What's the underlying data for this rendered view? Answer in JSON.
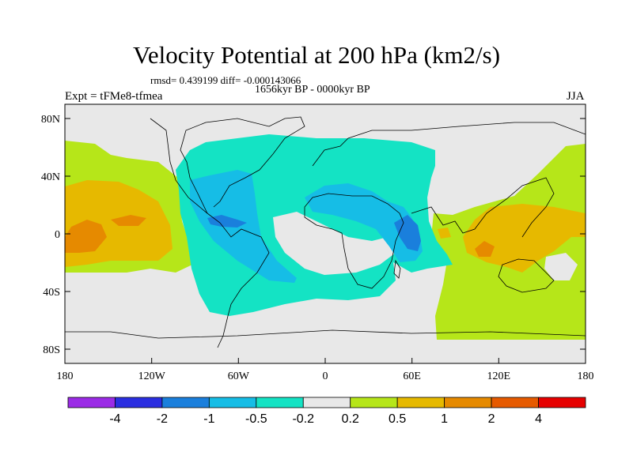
{
  "title": "Velocity Potential at 200 hPa (km2/s)",
  "stats": "rmsd= 0.439199 diff= -0.000143066",
  "subtitle": "1656kyr BP - 0000kyr BP",
  "left_label": "Expt = tFMe8-tfmea",
  "right_label": "JJA",
  "lat_ticks": [
    "80N",
    "40N",
    "0",
    "40S",
    "80S"
  ],
  "lon_ticks": [
    "180",
    "120W",
    "60W",
    "0",
    "60E",
    "120E",
    "180"
  ],
  "colorbar": {
    "colors": [
      "#9b2be6",
      "#2a2ee0",
      "#1a7fdc",
      "#16bde6",
      "#14e3c4",
      "#e8e8e8",
      "#b6e619",
      "#e6b900",
      "#e68a00",
      "#e65a00",
      "#e60000"
    ],
    "labels": [
      "-4",
      "-2",
      "-1",
      "-0.5",
      "-0.2",
      "0.2",
      "0.5",
      "1",
      "2",
      "4"
    ]
  },
  "regions": [
    {
      "name": "neutral-background",
      "level": "#e8e8e8"
    },
    {
      "name": "negative-atlantic-africa",
      "level": "#14e3c4"
    },
    {
      "name": "negative-caribbean",
      "level": "#16bde6"
    },
    {
      "name": "negative-east-africa",
      "level": "#16bde6"
    },
    {
      "name": "positive-central-pacific",
      "level": "#b6e619"
    },
    {
      "name": "positive-west-pacific-indian",
      "level": "#b6e619"
    }
  ]
}
